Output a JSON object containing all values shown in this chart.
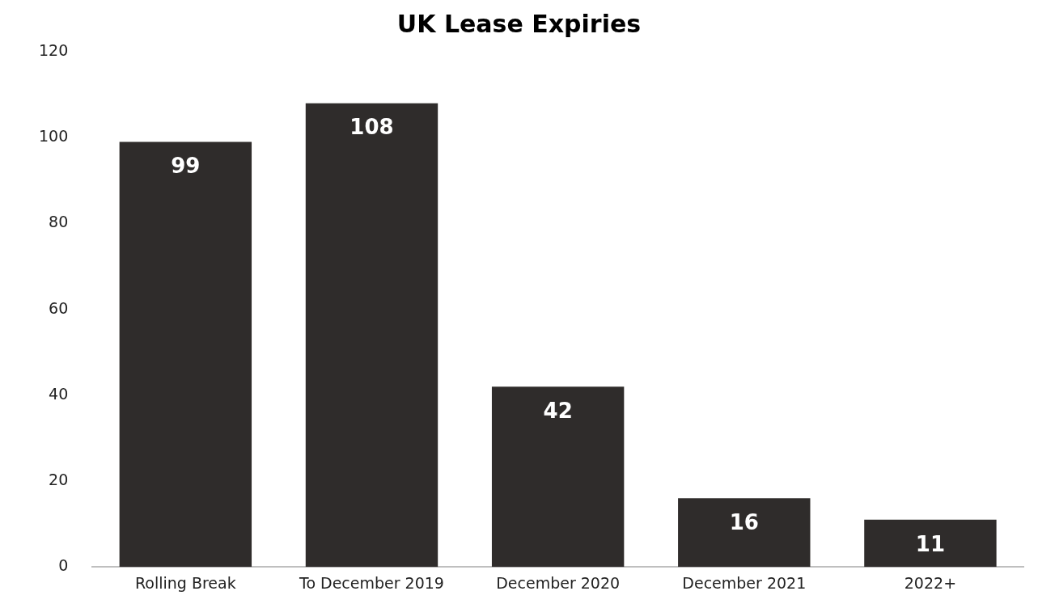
{
  "chart_data": {
    "type": "bar",
    "title": "UK Lease Expiries",
    "categories": [
      "Rolling Break",
      "To December 2019",
      "December 2020",
      "December 2021",
      "2022+"
    ],
    "values": [
      99,
      108,
      42,
      16,
      11
    ],
    "color": "#2f2c2b",
    "ylim": [
      0,
      120
    ],
    "yticks": [
      0,
      20,
      40,
      60,
      80,
      100,
      120
    ],
    "grid": false,
    "legend": false,
    "data_labels": true
  }
}
